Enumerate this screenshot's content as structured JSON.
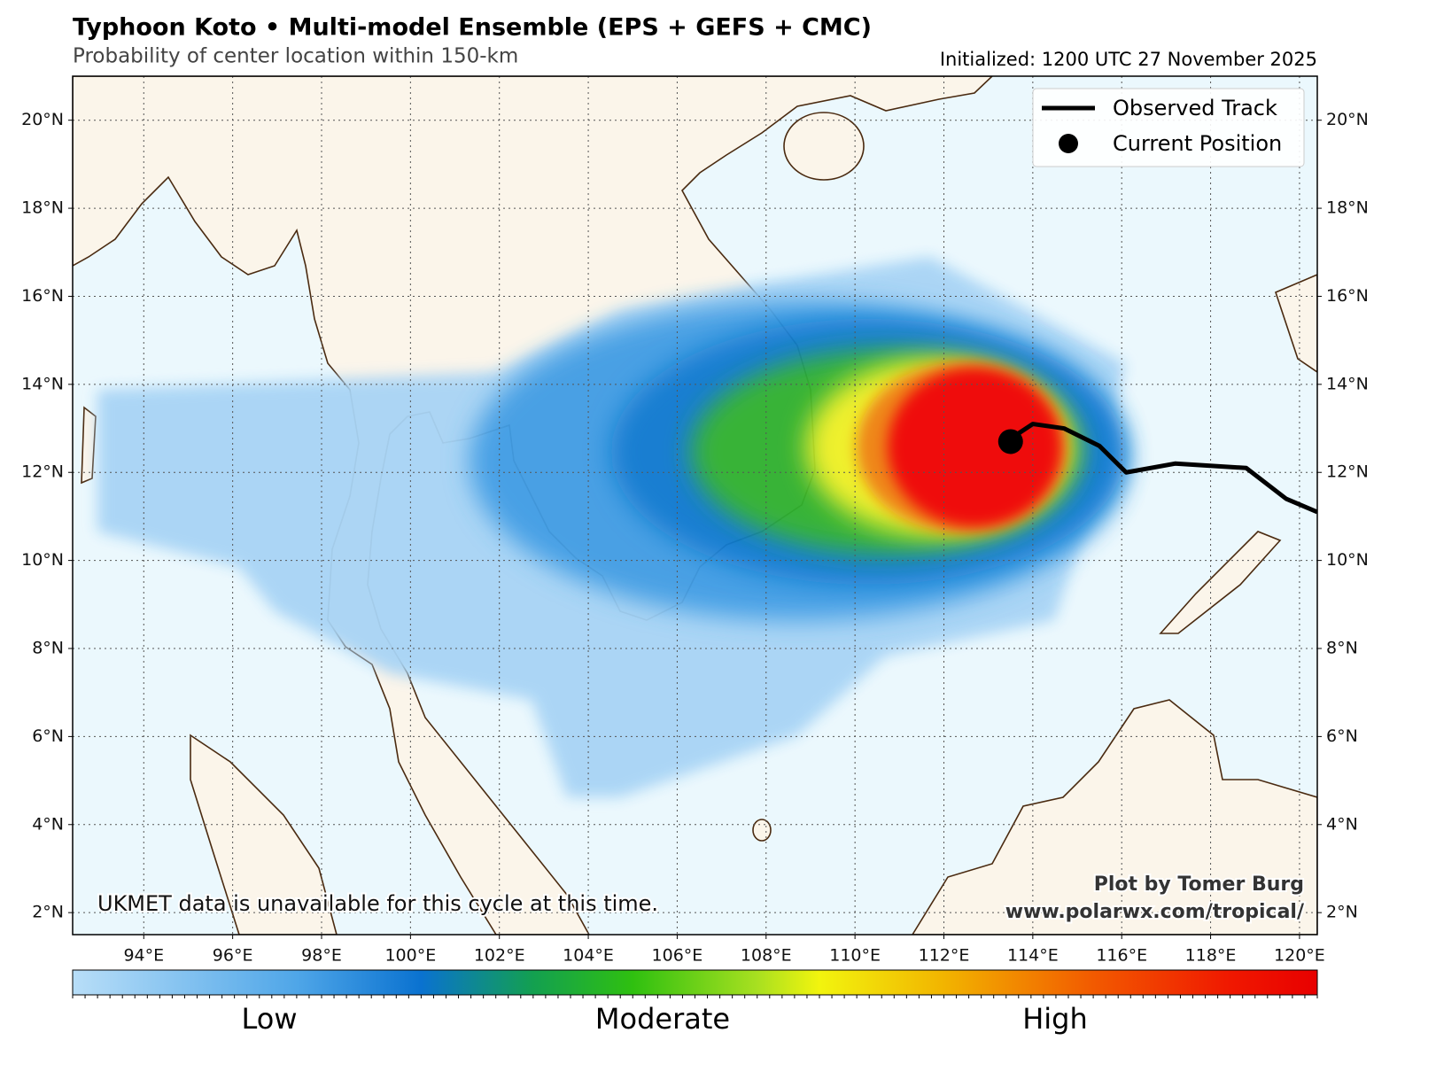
{
  "chart_data": {
    "type": "map",
    "title": "Typhoon Koto • Multi-model Ensemble (EPS + GEFS + CMC)",
    "subtitle": "Probability of center location within 150-km",
    "initialized": "Initialized: 1200 UTC 27 November 2025",
    "xlim": [
      92.4,
      120.4
    ],
    "ylim": [
      1.5,
      21.0
    ],
    "xticks": [
      {
        "value": 94,
        "label": "94°E"
      },
      {
        "value": 96,
        "label": "96°E"
      },
      {
        "value": 98,
        "label": "98°E"
      },
      {
        "value": 100,
        "label": "100°E"
      },
      {
        "value": 102,
        "label": "102°E"
      },
      {
        "value": 104,
        "label": "104°E"
      },
      {
        "value": 106,
        "label": "106°E"
      },
      {
        "value": 108,
        "label": "108°E"
      },
      {
        "value": 110,
        "label": "110°E"
      },
      {
        "value": 112,
        "label": "112°E"
      },
      {
        "value": 114,
        "label": "114°E"
      },
      {
        "value": 116,
        "label": "116°E"
      },
      {
        "value": 118,
        "label": "118°E"
      },
      {
        "value": 120,
        "label": "120°E"
      }
    ],
    "yticks": [
      {
        "value": 2,
        "label": "2°N"
      },
      {
        "value": 4,
        "label": "4°N"
      },
      {
        "value": 6,
        "label": "6°N"
      },
      {
        "value": 8,
        "label": "8°N"
      },
      {
        "value": 10,
        "label": "10°N"
      },
      {
        "value": 12,
        "label": "12°N"
      },
      {
        "value": 14,
        "label": "14°N"
      },
      {
        "value": 16,
        "label": "16°N"
      },
      {
        "value": 18,
        "label": "18°N"
      },
      {
        "value": 20,
        "label": "20°N"
      }
    ],
    "grid": true,
    "track": {
      "name": "Observed Track",
      "color": "#000000",
      "lon": [
        120.4,
        119.7,
        118.8,
        117.2,
        116.1,
        115.5,
        114.7,
        114.0,
        113.7,
        113.5
      ],
      "lat": [
        11.1,
        11.4,
        12.1,
        12.2,
        12.0,
        12.6,
        13.0,
        13.1,
        12.9,
        12.7
      ]
    },
    "current_position": {
      "name": "Current Position",
      "color": "#000000",
      "lon": 113.5,
      "lat": 12.7
    },
    "legend": "upper right",
    "note": "UKMET data is unavailable for this cycle at this time.",
    "credit": [
      "Plot by Tomer Burg",
      "www.polarwx.com/tropical/"
    ],
    "colorbar_labels": [
      "Low",
      "Moderate",
      "High"
    ]
  }
}
